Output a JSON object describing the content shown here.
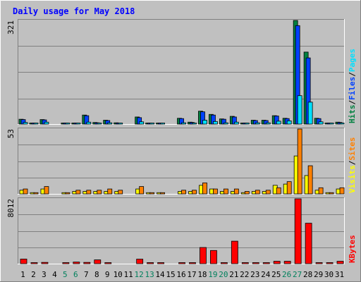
{
  "chart_data": {
    "type": "bar",
    "title": "Daily usage for May 2018",
    "colors": {
      "hits": "#008040",
      "files": "#0040ff",
      "pages": "#00e0ff",
      "visits": "#ffff00",
      "sites": "#ff8000",
      "kbytes": "#ff0000",
      "weekend": "#00805c",
      "weekday": "#000000",
      "background": "#c0c0c0",
      "title": "#0000ff"
    },
    "categories": [
      "1",
      "2",
      "3",
      "4",
      "5",
      "6",
      "7",
      "8",
      "9",
      "10",
      "11",
      "12",
      "13",
      "14",
      "15",
      "16",
      "17",
      "18",
      "19",
      "20",
      "21",
      "22",
      "23",
      "24",
      "25",
      "26",
      "27",
      "28",
      "29",
      "30",
      "31"
    ],
    "weekend_days": [
      "5",
      "6",
      "12",
      "13",
      "19",
      "20",
      "26",
      "27"
    ],
    "panels": [
      {
        "name": "hits-files-pages",
        "ymax_label": "321",
        "ylim": [
          0,
          321
        ],
        "legend": [
          {
            "text": "Hits",
            "color": "#008040"
          },
          {
            "text": "/",
            "color": "#000000"
          },
          {
            "text": "Files",
            "color": "#0040ff"
          },
          {
            "text": "/",
            "color": "#000000"
          },
          {
            "text": "Pages",
            "color": "#00e0ff"
          }
        ],
        "series": [
          {
            "name": "Hits",
            "color": "#008040",
            "values": [
              15,
              3,
              14,
              0,
              3,
              3,
              28,
              5,
              12,
              4,
              0,
              22,
              3,
              3,
              0,
              18,
              6,
              40,
              30,
              16,
              24,
              3,
              12,
              12,
              26,
              18,
              321,
              223,
              18,
              3,
              6
            ]
          },
          {
            "name": "Files",
            "color": "#0040ff",
            "values": [
              14,
              2,
              13,
              0,
              2,
              2,
              26,
              4,
              11,
              3,
              0,
              20,
              2,
              2,
              0,
              17,
              5,
              38,
              28,
              15,
              22,
              2,
              11,
              11,
              25,
              17,
              305,
              205,
              17,
              2,
              5
            ]
          },
          {
            "name": "Pages",
            "color": "#00e0ff",
            "values": [
              5,
              1,
              6,
              0,
              1,
              1,
              6,
              2,
              4,
              2,
              0,
              7,
              1,
              1,
              0,
              4,
              2,
              12,
              8,
              4,
              6,
              1,
              4,
              4,
              9,
              10,
              88,
              68,
              7,
              2,
              3
            ]
          }
        ]
      },
      {
        "name": "visits-sites",
        "ymax_label": "53",
        "ylim": [
          0,
          53
        ],
        "legend": [
          {
            "text": "Visits",
            "color": "#ffff00"
          },
          {
            "text": "/",
            "color": "#000000"
          },
          {
            "text": "Sites",
            "color": "#ff8000"
          }
        ],
        "series": [
          {
            "name": "Visits",
            "color": "#ffff00",
            "values": [
              3,
              1,
              4,
              0,
              1,
              2,
              2,
              2,
              2,
              2,
              0,
              4,
              1,
              1,
              0,
              2,
              2,
              7,
              4,
              2,
              2,
              1,
              2,
              2,
              7,
              8,
              31,
              15,
              3,
              1,
              4
            ]
          },
          {
            "name": "Sites",
            "color": "#ff8000",
            "values": [
              4,
              1,
              6,
              0,
              1,
              3,
              3,
              3,
              4,
              3,
              0,
              6,
              1,
              1,
              0,
              3,
              3,
              9,
              4,
              4,
              4,
              2,
              3,
              3,
              5,
              10,
              53,
              23,
              5,
              1,
              5
            ]
          }
        ]
      },
      {
        "name": "kbytes",
        "ymax_label": "8012",
        "ylim": [
          0,
          8012
        ],
        "legend": [
          {
            "text": "KBytes",
            "color": "#ff0000"
          }
        ],
        "series": [
          {
            "name": "KBytes",
            "color": "#ff0000",
            "values": [
              570,
              80,
              160,
              0,
              70,
              200,
              160,
              470,
              120,
              0,
              0,
              560,
              90,
              90,
              0,
              110,
              110,
              2000,
              1630,
              110,
              2780,
              80,
              110,
              110,
              300,
              300,
              8012,
              5000,
              90,
              80,
              300
            ]
          }
        ]
      }
    ]
  }
}
